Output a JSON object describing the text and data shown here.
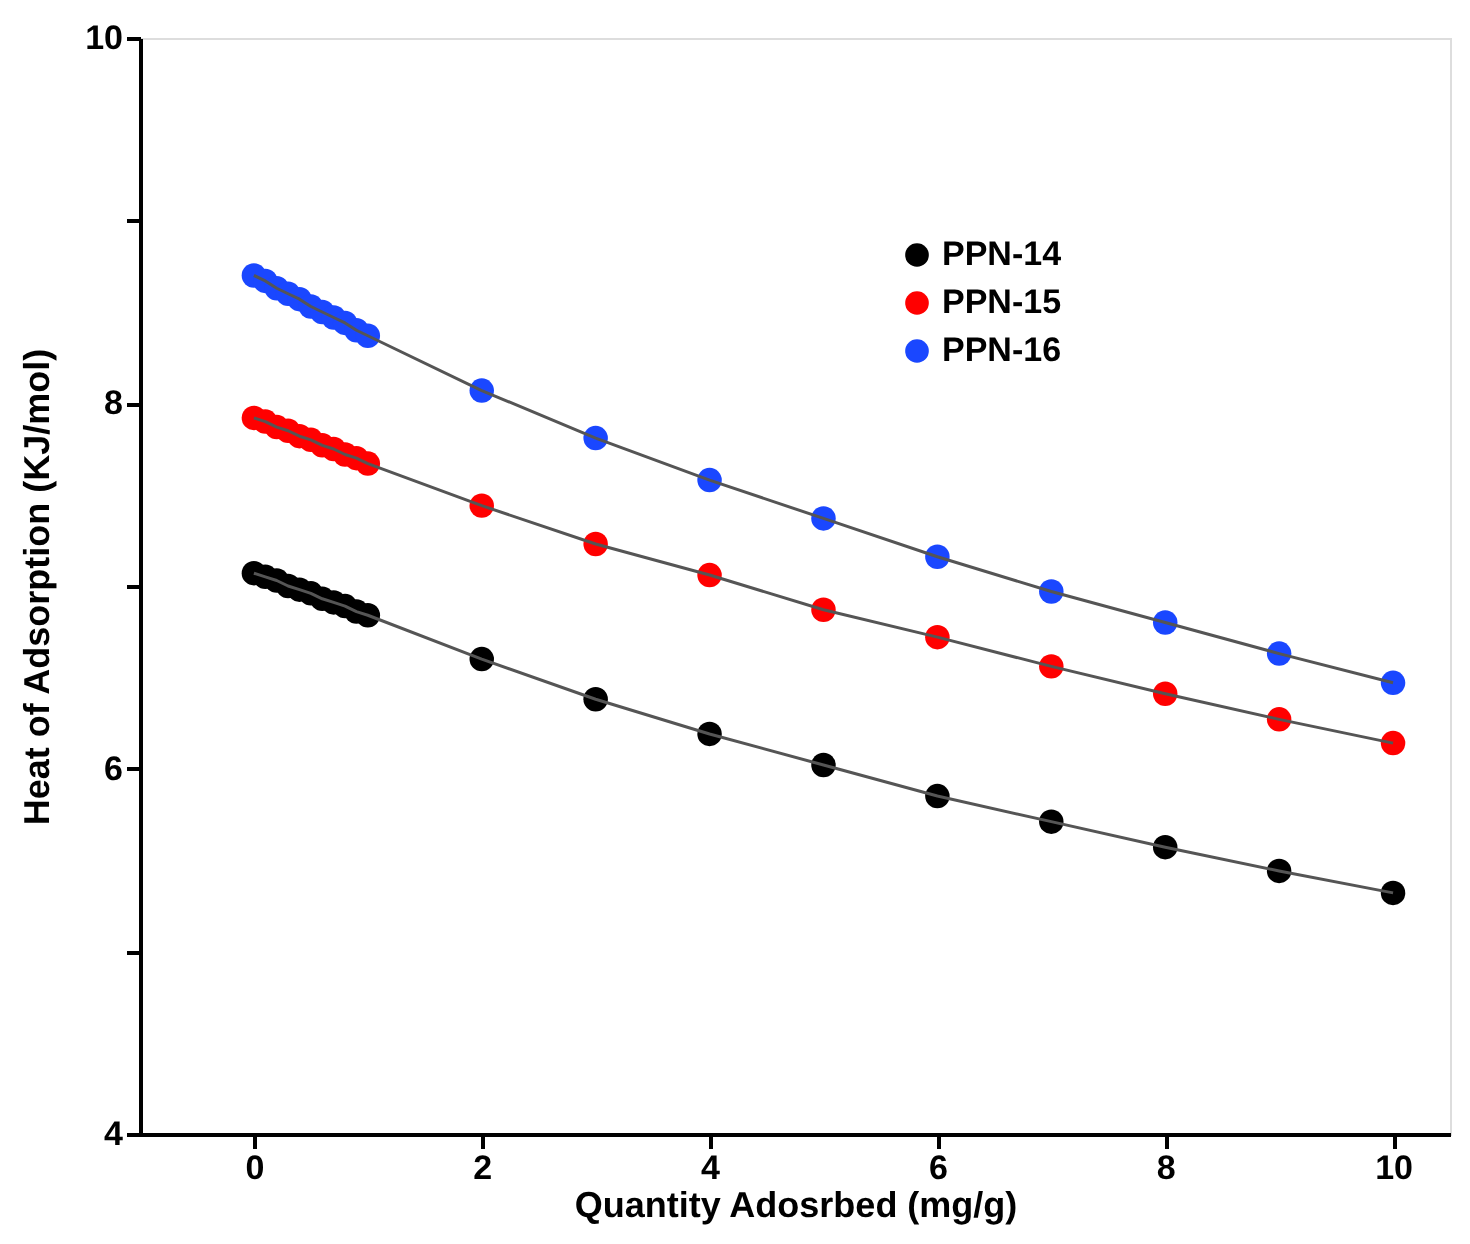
{
  "chart_data": {
    "type": "line",
    "xlabel": "Quantity Adosrbed (mg/g)",
    "ylabel": "Heat of Adsorption (KJ/mol)",
    "x": [
      0,
      0.1,
      0.2,
      0.3,
      0.4,
      0.5,
      0.6,
      0.7,
      0.8,
      0.9,
      1,
      2,
      3,
      4,
      5,
      6,
      7,
      8,
      9,
      10
    ],
    "series": [
      {
        "name": "PPN-14",
        "color": "#000000",
        "values": [
          7.07,
          7.05,
          7.03,
          7.0,
          6.98,
          6.96,
          6.93,
          6.91,
          6.89,
          6.86,
          6.84,
          6.6,
          6.38,
          6.19,
          6.02,
          5.85,
          5.71,
          5.57,
          5.44,
          5.32
        ]
      },
      {
        "name": "PPN-15",
        "color": "#ff0000",
        "values": [
          7.92,
          7.9,
          7.87,
          7.85,
          7.82,
          7.8,
          7.77,
          7.75,
          7.72,
          7.7,
          7.67,
          7.44,
          7.23,
          7.06,
          6.87,
          6.72,
          6.56,
          6.41,
          6.27,
          6.14
        ]
      },
      {
        "name": "PPN-16",
        "color": "#1a47ff",
        "values": [
          8.7,
          8.67,
          8.63,
          8.6,
          8.57,
          8.53,
          8.5,
          8.47,
          8.44,
          8.4,
          8.37,
          8.07,
          7.81,
          7.58,
          7.37,
          7.16,
          6.97,
          6.8,
          6.63,
          6.47
        ]
      }
    ],
    "xlim": [
      -1,
      10.5
    ],
    "xticks": [
      0,
      2,
      4,
      6,
      8,
      10
    ],
    "ylim": [
      4,
      10
    ],
    "yticks": [
      4,
      {
        "value": 5,
        "label": null
      },
      6,
      {
        "value": 7,
        "label": null
      },
      8,
      {
        "value": 9,
        "label": null
      },
      10
    ],
    "marker": "circle",
    "line_style": "solid",
    "grid": false,
    "legend": "top right"
  }
}
